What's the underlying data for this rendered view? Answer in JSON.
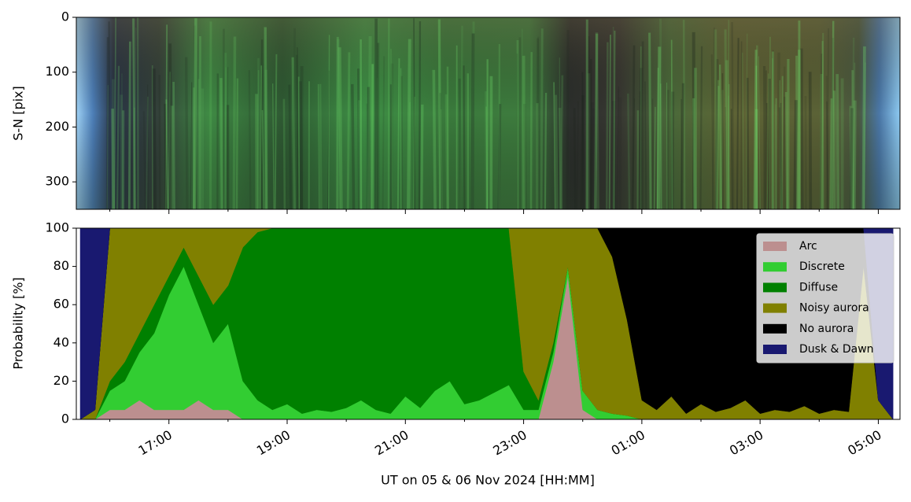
{
  "chart_data": [
    {
      "type": "image",
      "ylabel": "S-N [pix]",
      "ylim": [
        0,
        350
      ],
      "yticks": [
        0,
        100,
        200,
        300
      ],
      "invert_y": true
    },
    {
      "type": "stackedarea",
      "ylabel": "Probability [%]",
      "xlabel": "UT on 05 & 06 Nov 2024 [HH:MM]",
      "xlim": [
        "15:26",
        "05:22"
      ],
      "xticks": [
        "17:00",
        "19:00",
        "21:00",
        "23:00",
        "01:00",
        "03:00",
        "05:00"
      ],
      "xminorticks": [
        "16:00",
        "18:00",
        "20:00",
        "22:00",
        "00:00",
        "02:00",
        "04:00"
      ],
      "ylim": [
        0,
        100
      ],
      "yticks": [
        0,
        20,
        40,
        60,
        80,
        100
      ],
      "legend": "upper right",
      "x": [
        "15:30",
        "15:45",
        "16:00",
        "16:15",
        "16:30",
        "16:45",
        "17:00",
        "17:15",
        "17:30",
        "17:45",
        "18:00",
        "18:15",
        "18:30",
        "18:45",
        "19:00",
        "19:15",
        "19:30",
        "19:45",
        "20:00",
        "20:15",
        "20:30",
        "20:45",
        "21:00",
        "21:15",
        "21:30",
        "21:45",
        "22:00",
        "22:15",
        "22:30",
        "22:45",
        "23:00",
        "23:15",
        "23:30",
        "23:45",
        "00:00",
        "00:15",
        "00:30",
        "00:45",
        "01:00",
        "01:15",
        "01:30",
        "01:45",
        "02:00",
        "02:15",
        "02:30",
        "02:45",
        "03:00",
        "03:15",
        "03:30",
        "03:45",
        "04:00",
        "04:15",
        "04:30",
        "04:45",
        "05:00",
        "05:15"
      ],
      "series": [
        {
          "name": "Arc",
          "color": "#bc8f8f",
          "values": [
            0,
            0,
            5,
            5,
            10,
            5,
            5,
            5,
            10,
            5,
            5,
            0,
            0,
            0,
            0,
            0,
            0,
            0,
            0,
            0,
            0,
            0,
            0,
            0,
            0,
            0,
            0,
            0,
            0,
            0,
            0,
            0,
            30,
            75,
            5,
            0,
            0,
            0,
            0,
            0,
            0,
            0,
            0,
            0,
            0,
            0,
            0,
            0,
            0,
            0,
            0,
            0,
            0,
            0,
            0,
            0
          ]
        },
        {
          "name": "Discrete",
          "color": "#32cd32",
          "values": [
            0,
            0,
            10,
            15,
            25,
            40,
            60,
            75,
            50,
            35,
            45,
            20,
            10,
            5,
            8,
            3,
            5,
            4,
            6,
            10,
            5,
            3,
            12,
            6,
            15,
            20,
            8,
            10,
            14,
            18,
            5,
            5,
            5,
            5,
            10,
            5,
            3,
            2,
            0,
            0,
            0,
            0,
            0,
            0,
            0,
            0,
            0,
            0,
            0,
            0,
            0,
            0,
            0,
            0,
            0,
            0
          ]
        },
        {
          "name": "Diffuse",
          "color": "#008000",
          "values": [
            0,
            0,
            5,
            10,
            10,
            15,
            10,
            10,
            15,
            20,
            20,
            70,
            88,
            95,
            92,
            97,
            95,
            96,
            94,
            90,
            95,
            97,
            88,
            94,
            85,
            80,
            92,
            90,
            86,
            82,
            20,
            5,
            5,
            0,
            0,
            0,
            0,
            0,
            0,
            0,
            0,
            0,
            0,
            0,
            0,
            0,
            0,
            0,
            0,
            0,
            0,
            0,
            0,
            0,
            0,
            0
          ]
        },
        {
          "name": "Noisy aurora",
          "color": "#808000",
          "values": [
            0,
            5,
            80,
            70,
            55,
            40,
            25,
            10,
            25,
            40,
            30,
            10,
            2,
            0,
            0,
            0,
            0,
            0,
            0,
            0,
            0,
            0,
            0,
            0,
            0,
            0,
            0,
            0,
            0,
            0,
            75,
            90,
            60,
            20,
            85,
            95,
            82,
            50,
            10,
            5,
            12,
            3,
            8,
            4,
            6,
            10,
            3,
            5,
            4,
            7,
            3,
            5,
            4,
            80,
            10,
            0
          ]
        },
        {
          "name": "No aurora",
          "color": "#000000",
          "values": [
            0,
            0,
            0,
            0,
            0,
            0,
            0,
            0,
            0,
            0,
            0,
            0,
            0,
            0,
            0,
            0,
            0,
            0,
            0,
            0,
            0,
            0,
            0,
            0,
            0,
            0,
            0,
            0,
            0,
            0,
            0,
            0,
            0,
            0,
            0,
            0,
            15,
            48,
            90,
            95,
            88,
            97,
            92,
            96,
            94,
            90,
            97,
            95,
            96,
            93,
            97,
            95,
            96,
            20,
            0,
            0
          ]
        },
        {
          "name": "Dusk & Dawn",
          "color": "#191970",
          "values": [
            100,
            95,
            0,
            0,
            0,
            0,
            0,
            0,
            0,
            0,
            0,
            0,
            0,
            0,
            0,
            0,
            0,
            0,
            0,
            0,
            0,
            0,
            0,
            0,
            0,
            0,
            0,
            0,
            0,
            0,
            0,
            0,
            0,
            0,
            0,
            0,
            0,
            0,
            0,
            0,
            0,
            0,
            0,
            0,
            0,
            0,
            0,
            0,
            0,
            0,
            0,
            0,
            0,
            0,
            90,
            100
          ]
        }
      ]
    }
  ]
}
